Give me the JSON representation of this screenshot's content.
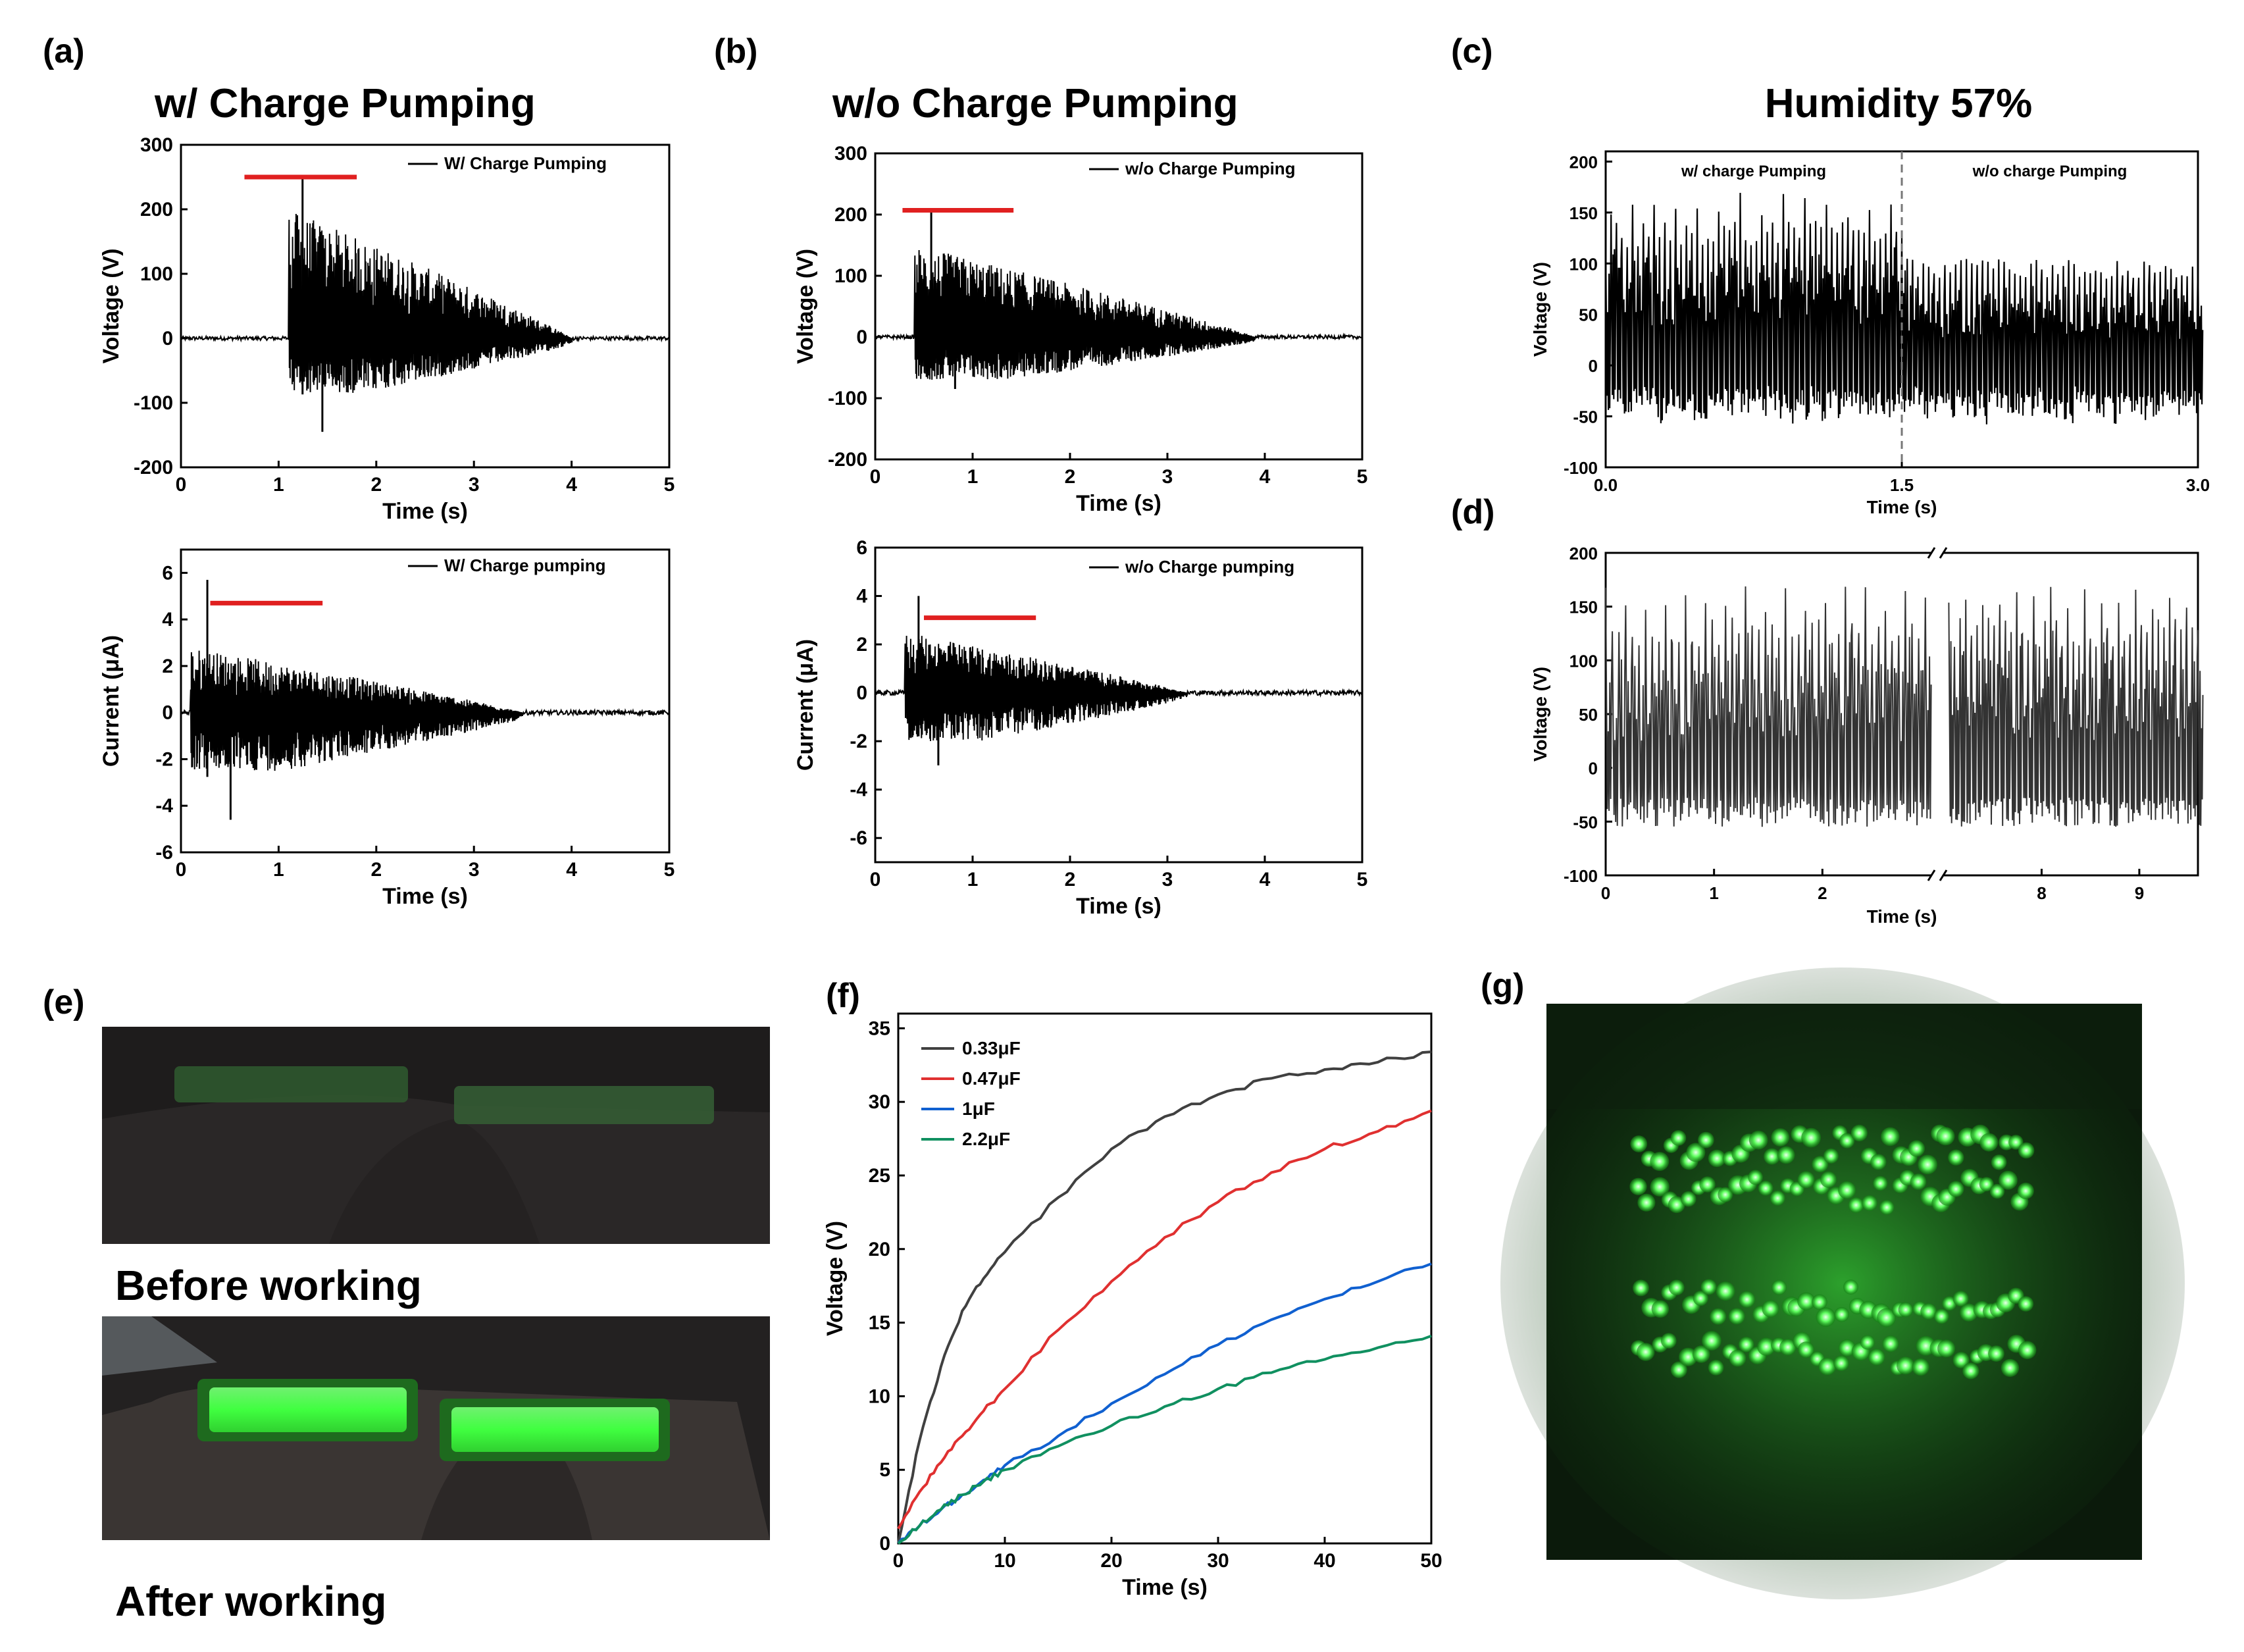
{
  "panel_labels": {
    "a": "(a)",
    "b": "(b)",
    "c": "(c)",
    "d": "(d)",
    "e": "(e)",
    "f": "(f)",
    "g": "(g)"
  },
  "titles": {
    "a": "w/ Charge Pumping",
    "b": "w/o Charge Pumping",
    "c": "Humidity 57%"
  },
  "captions": {
    "before": "Before working",
    "after": "After working"
  },
  "colors": {
    "signal": "#000000",
    "marker": "#e02020",
    "c033": "#404040",
    "c047": "#e03030",
    "c1": "#1060d0",
    "c22": "#109060",
    "led_green": "#40e040"
  },
  "chart_data": [
    {
      "id": "a_voltage",
      "type": "line",
      "xlabel": "Time (s)",
      "ylabel": "Voltage (V)",
      "xlim": [
        0,
        5
      ],
      "ylim": [
        -200,
        300
      ],
      "xticks": [
        0,
        1,
        2,
        3,
        4,
        5
      ],
      "yticks": [
        -200,
        -100,
        0,
        100,
        200,
        300
      ],
      "xtick_labels": [
        "0",
        "1",
        "2",
        "3",
        "4",
        "5"
      ],
      "ytick_labels": [
        "-200",
        "-100",
        "0",
        "100",
        "200",
        "300"
      ],
      "series": [
        {
          "name": "W/ Charge Pumping",
          "onset": 1.1,
          "end": 4.0,
          "peak_pos": 250,
          "peak_neg": -145,
          "typ_pos": 200,
          "typ_neg": -85
        }
      ],
      "marker_line": {
        "x": [
          0.65,
          1.8
        ],
        "y": 250
      }
    },
    {
      "id": "a_current",
      "type": "line",
      "xlabel": "Time (s)",
      "ylabel": "Current (μA)",
      "xlim": [
        0,
        5
      ],
      "ylim": [
        -6,
        7
      ],
      "xticks": [
        0,
        1,
        2,
        3,
        4,
        5
      ],
      "yticks": [
        -6,
        -4,
        -2,
        0,
        2,
        4,
        6
      ],
      "xtick_labels": [
        "0",
        "1",
        "2",
        "3",
        "4",
        "5"
      ],
      "ytick_labels": [
        "-6",
        "-4",
        "-2",
        "0",
        "2",
        "4",
        "6"
      ],
      "series": [
        {
          "name": "W/ Charge pumping",
          "onset": 0.1,
          "end": 3.5,
          "peak_pos": 5.7,
          "peak_neg": -4.6,
          "typ_pos": 2.8,
          "typ_neg": -2.5
        }
      ],
      "marker_line": {
        "x": [
          0.3,
          1.45
        ],
        "y": 4.7
      }
    },
    {
      "id": "b_voltage",
      "type": "line",
      "xlabel": "Time (s)",
      "ylabel": "Voltage (V)",
      "xlim": [
        0,
        5
      ],
      "ylim": [
        -200,
        300
      ],
      "xticks": [
        0,
        1,
        2,
        3,
        4,
        5
      ],
      "yticks": [
        -200,
        -100,
        0,
        100,
        200,
        300
      ],
      "xtick_labels": [
        "0",
        "1",
        "2",
        "3",
        "4",
        "5"
      ],
      "ytick_labels": [
        "-200",
        "-100",
        "0",
        "100",
        "200",
        "300"
      ],
      "series": [
        {
          "name": "w/o Charge Pumping",
          "onset": 0.4,
          "end": 3.9,
          "peak_pos": 205,
          "peak_neg": -85,
          "typ_pos": 150,
          "typ_neg": -70
        }
      ],
      "marker_line": {
        "x": [
          0.28,
          1.42
        ],
        "y": 207
      }
    },
    {
      "id": "b_current",
      "type": "line",
      "xlabel": "Time (s)",
      "ylabel": "Current (μA)",
      "xlim": [
        0,
        5
      ],
      "ylim": [
        -7,
        6
      ],
      "xticks": [
        0,
        1,
        2,
        3,
        4,
        5
      ],
      "yticks": [
        -6,
        -4,
        -2,
        0,
        2,
        4,
        6
      ],
      "xtick_labels": [
        "0",
        "1",
        "2",
        "3",
        "4",
        "5"
      ],
      "ytick_labels": [
        "-6",
        "-4",
        "-2",
        "0",
        "2",
        "4",
        "6"
      ],
      "series": [
        {
          "name": "w/o Charge pumping",
          "onset": 0.3,
          "end": 3.2,
          "peak_pos": 4.0,
          "peak_neg": -3.0,
          "typ_pos": 2.5,
          "typ_neg": -2.0
        }
      ],
      "marker_line": {
        "x": [
          0.5,
          1.65
        ],
        "y": 3.1
      }
    },
    {
      "id": "c_voltage",
      "type": "line",
      "xlabel": "Time (s)",
      "ylabel": "Voltage (V)",
      "xlim": [
        0,
        3
      ],
      "ylim": [
        -100,
        210
      ],
      "xticks": [
        0,
        1.5,
        3
      ],
      "yticks": [
        -100,
        -50,
        0,
        50,
        100,
        150,
        200
      ],
      "xtick_labels": [
        "0.0",
        "1.5",
        "3.0"
      ],
      "ytick_labels": [
        "-100",
        "-50",
        "0",
        "50",
        "100",
        "150",
        "200"
      ],
      "divider_x": 1.5,
      "series": [
        {
          "name": "w/ charge Pumping",
          "x_range": [
            0,
            1.5
          ],
          "peak_pos": 170,
          "typ_pos": 135,
          "typ_neg": -55
        },
        {
          "name": "w/o charge Pumping",
          "x_range": [
            1.5,
            3
          ],
          "peak_pos": 110,
          "typ_pos": 100,
          "typ_neg": -55
        }
      ]
    },
    {
      "id": "d_voltage",
      "type": "line",
      "xlabel": "Time (s)",
      "ylabel": "Voltage (V)",
      "ylim": [
        -100,
        200
      ],
      "yticks": [
        -100,
        -50,
        0,
        50,
        100,
        150,
        200
      ],
      "ytick_labels": [
        "-100",
        "-50",
        "0",
        "50",
        "100",
        "150",
        "200"
      ],
      "broken_axis": {
        "left_xlim": [
          0,
          3
        ],
        "right_xlim": [
          7,
          9.6
        ]
      },
      "xticks": [
        0,
        1,
        2,
        8,
        9
      ],
      "xtick_labels": [
        "0",
        "1",
        "2",
        "8",
        "9"
      ],
      "series": [
        {
          "name": "",
          "peak_pos": 170,
          "typ_pos": 140,
          "typ_neg": -55
        }
      ]
    },
    {
      "id": "f_charging",
      "type": "line",
      "xlabel": "Time (s)",
      "ylabel": "Voltage (V)",
      "xlim": [
        0,
        50
      ],
      "ylim": [
        0,
        36
      ],
      "xticks": [
        0,
        10,
        20,
        30,
        40,
        50
      ],
      "yticks": [
        0,
        5,
        10,
        15,
        20,
        25,
        30,
        35
      ],
      "xtick_labels": [
        "0",
        "10",
        "20",
        "30",
        "40",
        "50"
      ],
      "ytick_labels": [
        "0",
        "5",
        "10",
        "15",
        "20",
        "25",
        "30",
        "35"
      ],
      "legend_position": "top-left",
      "series": [
        {
          "name": "0.33μF",
          "x": [
            0,
            2,
            4,
            6,
            8,
            10,
            15,
            20,
            25,
            30,
            35,
            40,
            45,
            50
          ],
          "values": [
            0,
            7,
            12,
            15.8,
            18,
            19.8,
            23.5,
            26.8,
            29,
            30.5,
            31.6,
            32.2,
            32.7,
            33.4
          ]
        },
        {
          "name": "0.47μF",
          "x": [
            0,
            2,
            4,
            6,
            8,
            10,
            15,
            20,
            25,
            30,
            35,
            40,
            45,
            50
          ],
          "values": [
            1,
            3.5,
            5.5,
            7.3,
            9,
            10.5,
            14.5,
            17.8,
            20.8,
            23.2,
            25.2,
            26.8,
            28,
            29.4
          ]
        },
        {
          "name": "1μF",
          "x": [
            0,
            2,
            4,
            6,
            8,
            10,
            15,
            20,
            25,
            30,
            35,
            40,
            45,
            50
          ],
          "values": [
            0,
            1.2,
            2.3,
            3.3,
            4.3,
            5.3,
            7.3,
            9.5,
            11.5,
            13.5,
            15.2,
            16.6,
            17.8,
            19
          ]
        },
        {
          "name": "2.2μF",
          "x": [
            0,
            2,
            4,
            6,
            8,
            10,
            15,
            20,
            25,
            30,
            35,
            40,
            45,
            50
          ],
          "values": [
            0,
            1.2,
            2.3,
            3.3,
            4.2,
            5,
            6.6,
            8,
            9.3,
            10.5,
            11.6,
            12.5,
            13.3,
            14.1
          ]
        }
      ]
    }
  ]
}
